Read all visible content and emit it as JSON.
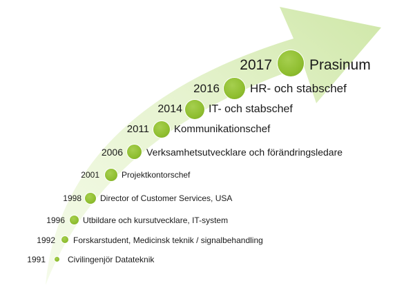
{
  "colors": {
    "arrow_light": "#eef7dc",
    "arrow_dark": "#d3eab0",
    "dot": "#8fbe30"
  },
  "milestones": [
    {
      "year": "2017",
      "title": "Prasinum"
    },
    {
      "year": "2016",
      "title": "HR- och stabschef"
    },
    {
      "year": "2014",
      "title": "IT- och stabschef"
    },
    {
      "year": "2011",
      "title": "Kommunikationschef"
    },
    {
      "year": "2006",
      "title": "Verksamhetsutvecklare och förändringsledare"
    },
    {
      "year": "2001",
      "title": "Projektkontorschef"
    },
    {
      "year": "1998",
      "title": "Director of Customer Services, USA"
    },
    {
      "year": "1996",
      "title": "Utbildare och kursutvecklare, IT-system"
    },
    {
      "year": "1992",
      "title": "Forskarstudent, Medicinsk teknik / signalbehandling"
    },
    {
      "year": "1991",
      "title": "Civilingenjör Datateknik"
    }
  ]
}
